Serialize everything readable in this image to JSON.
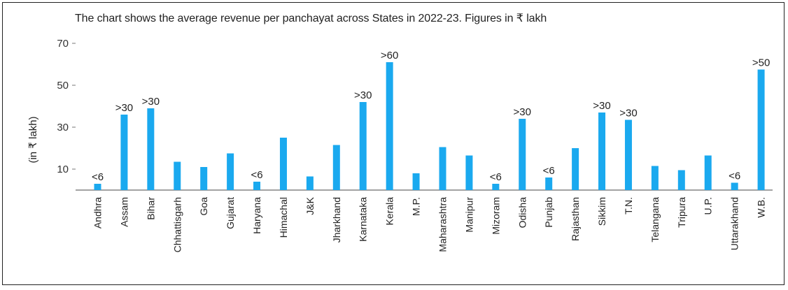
{
  "title": "The chart shows the average revenue per panchayat across States in 2022-23. Figures in ₹ lakh",
  "colors": {
    "bar": "#1aa9ef",
    "axis": "#444444",
    "text": "#222222"
  },
  "chart_data": {
    "type": "bar",
    "title": "The chart shows the average revenue per panchayat across States in 2022-23. Figures in ₹ lakh",
    "xlabel": "",
    "ylabel": "(in ₹ lakh)",
    "yticks": [
      10,
      30,
      50,
      70
    ],
    "ylim": [
      0,
      70
    ],
    "grid": false,
    "categories": [
      "Andhra",
      "Assam",
      "Bihar",
      "Chhattisgarh",
      "Goa",
      "Gujarat",
      "Haryana",
      "Himachal",
      "J&K",
      "Jharkhand",
      "Karnataka",
      "Kerala",
      "M.P.",
      "Maharashtra",
      "Manipur",
      "Mizoram",
      "Odisha",
      "Punjab",
      "Rajasthan",
      "Sikkim",
      "T.N.",
      "Telangana",
      "Tripura",
      "U.P.",
      "Uttarakhand",
      "W.B."
    ],
    "values": [
      3,
      36,
      39,
      13.5,
      11,
      17.5,
      4,
      25,
      6.5,
      21.5,
      42,
      61,
      8,
      20.5,
      16.5,
      3,
      34,
      6,
      20,
      37,
      33.5,
      11.5,
      9.5,
      16.5,
      3.5,
      57.5
    ],
    "data_labels": [
      "<6",
      ">30",
      ">30",
      "",
      "",
      "",
      "<6",
      "",
      "",
      "",
      ">30",
      ">60",
      "",
      "",
      "",
      "<6",
      ">30",
      "<6",
      "",
      ">30",
      ">30",
      "",
      "",
      "",
      "<6",
      ">50"
    ]
  }
}
